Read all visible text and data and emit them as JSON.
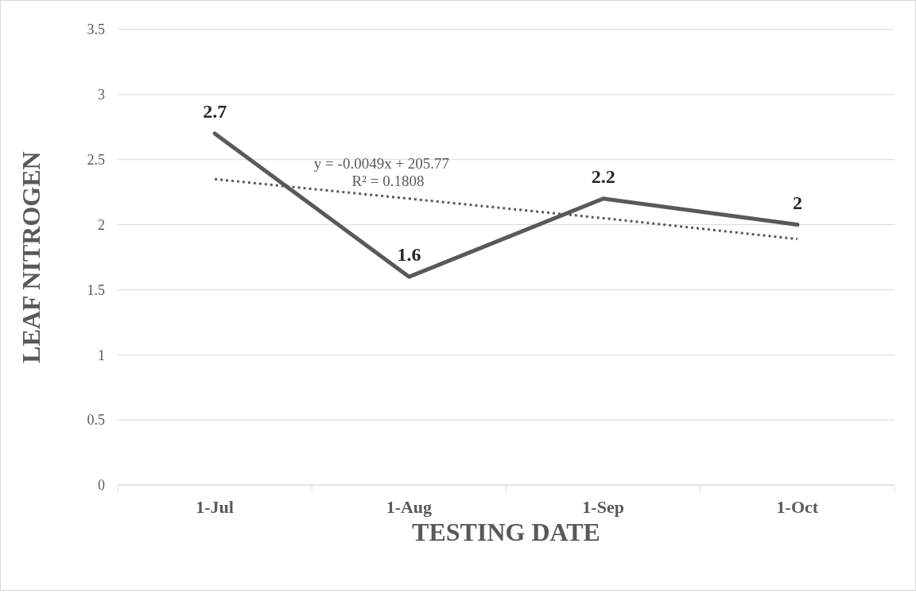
{
  "chart_data": {
    "type": "line",
    "xlabel": "TESTING DATE",
    "ylabel": "LEAF NITROGEN",
    "categories": [
      "1-Jul",
      "1-Aug",
      "1-Sep",
      "1-Oct"
    ],
    "series": [
      {
        "color": "#595959",
        "values": [
          2.7,
          1.6,
          2.2,
          2
        ],
        "value_labels": [
          "2.7",
          "1.6",
          "2.2",
          "2"
        ],
        "line_style": "solid"
      },
      {
        "type": "line",
        "color": "#595959",
        "values": [
          2.35,
          2.2,
          2.05,
          1.89
        ],
        "line_style": "dotted"
      }
    ],
    "annotations": [
      "y = -0.0049x + 205.77",
      "R² = 0.1808"
    ],
    "ylim": [
      0,
      3.5
    ],
    "yticks": [
      0,
      0.5,
      1,
      1.5,
      2,
      2.5,
      3,
      3.5
    ],
    "grid": "y",
    "marker": "none"
  }
}
